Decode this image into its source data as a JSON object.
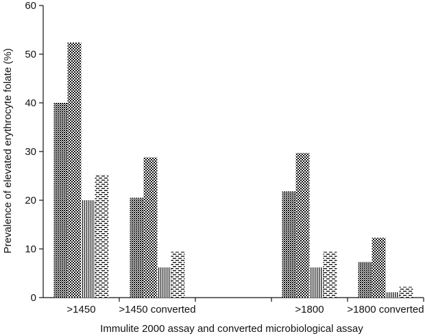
{
  "chart_data": {
    "type": "bar",
    "categories": [
      ">1450",
      ">1450 converted",
      "",
      ">1800",
      ">1800 converted"
    ],
    "series": [
      {
        "pattern": "dense-checker",
        "values": [
          40.0,
          20.5,
          null,
          21.8,
          7.3
        ]
      },
      {
        "pattern": "checker",
        "values": [
          52.4,
          28.8,
          null,
          29.7,
          12.3
        ]
      },
      {
        "pattern": "vertical-stripes",
        "values": [
          20.0,
          6.2,
          null,
          6.2,
          1.1
        ]
      },
      {
        "pattern": "dashes",
        "values": [
          25.3,
          9.4,
          null,
          9.4,
          2.2
        ]
      }
    ],
    "title": "",
    "xlabel": "Immulite 2000 assay and converted microbiological assay",
    "ylabel": "Prevalence of elevated erythrocyte folate (%)",
    "ylim": [
      0,
      60
    ],
    "yticks": [
      0,
      10,
      20,
      30,
      40,
      50,
      60
    ],
    "grid": false,
    "legend": "none"
  }
}
